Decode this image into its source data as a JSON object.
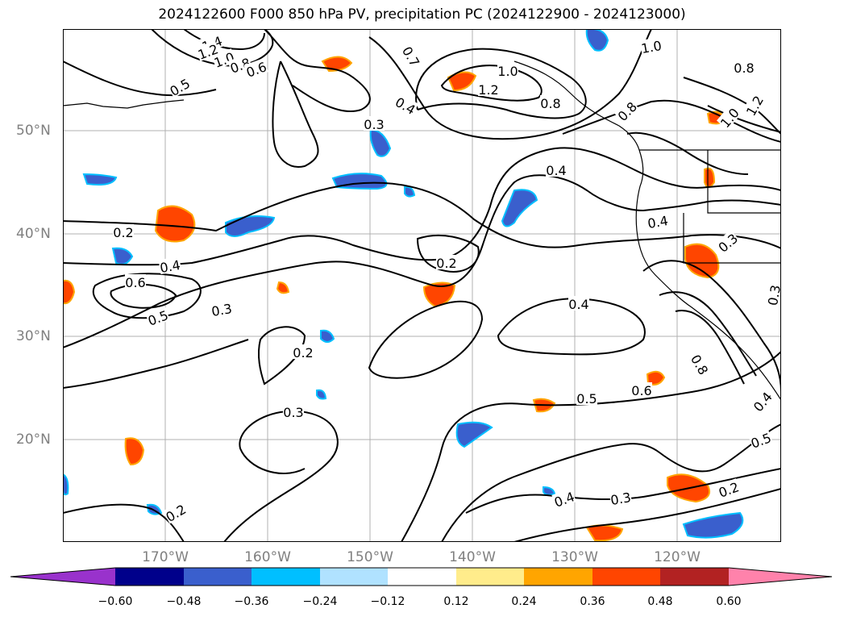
{
  "title": "2024122600 F000 850 hPa PV, precipitation PC (2024122900 - 2024123000)",
  "axes": {
    "lat_labels": [
      "50°N",
      "40°N",
      "30°N",
      "20°N"
    ],
    "lon_labels": [
      "170°W",
      "160°W",
      "150°W",
      "140°W",
      "130°W",
      "120°W"
    ]
  },
  "colorbar": {
    "ticks": [
      "−0.60",
      "−0.48",
      "−0.36",
      "−0.24",
      "−0.12",
      "0.12",
      "0.24",
      "0.36",
      "0.48",
      "0.60"
    ],
    "colors": [
      "#9932cc",
      "#00008b",
      "#3a5fcd",
      "#00bfff",
      "#b0e2ff",
      "#ffffff",
      "#ffec8b",
      "#ffa500",
      "#ff4500",
      "#b22222",
      "#ff82ab"
    ],
    "extend": "both"
  },
  "pv_contour_labels": [
    "1.4",
    "1.2",
    "1.0",
    "0.8",
    "0.6",
    "0.5",
    "1.0",
    "1.2",
    "0.7",
    "0.4",
    "0.3",
    "1.0",
    "0.8",
    "0.8",
    "0.8",
    "1.0",
    "1.2",
    "0.4",
    "0.2",
    "0.4",
    "0.6",
    "0.5",
    "0.3",
    "0.2",
    "0.4",
    "0.2",
    "0.3",
    "0.4",
    "0.3",
    "0.5",
    "0.6",
    "0.8",
    "0.4",
    "0.3",
    "0.2",
    "0.5",
    "0.2",
    "0.3",
    "0.4"
  ]
}
